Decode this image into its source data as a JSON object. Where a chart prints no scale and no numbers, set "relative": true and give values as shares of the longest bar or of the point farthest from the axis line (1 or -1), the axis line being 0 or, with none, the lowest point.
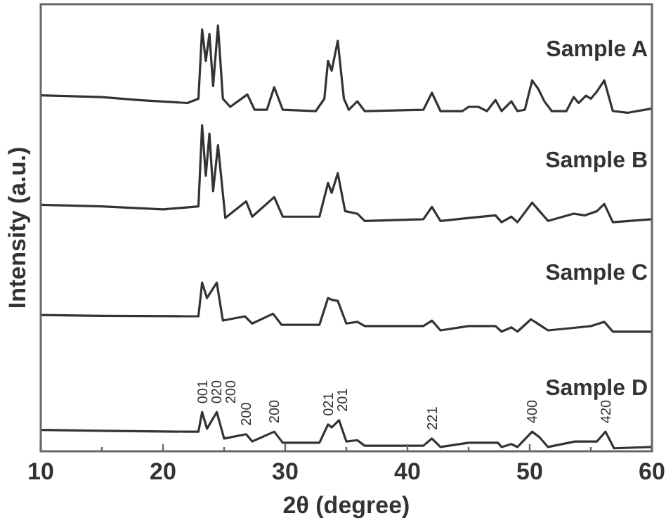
{
  "chart_data": {
    "type": "line",
    "relative": true,
    "xlabel": "2θ (degree)",
    "ylabel": "Intensity (a.u.)",
    "xlim": [
      10,
      60
    ],
    "xticks": [
      10,
      {
        "value": 15,
        "label": null
      },
      20,
      {
        "value": 25,
        "label": null
      },
      30,
      {
        "value": 35,
        "label": null
      },
      40,
      {
        "value": 45,
        "label": null
      },
      50,
      {
        "value": 55,
        "label": null
      },
      60
    ],
    "grid": false,
    "marker": "none",
    "line_style": "solid",
    "series": [
      {
        "name": "Sample A",
        "color": "#333333",
        "x": [
          10,
          15,
          18,
          22,
          22.9,
          23.2,
          23.5,
          23.8,
          24.1,
          24.5,
          24.9,
          25.5,
          26.9,
          27.5,
          28.5,
          29.1,
          29.8,
          32.5,
          33.2,
          33.5,
          33.8,
          34.3,
          34.8,
          35.2,
          35.9,
          36.5,
          41.3,
          42,
          42.7,
          44.5,
          45,
          45.8,
          46.5,
          47.2,
          47.7,
          48.5,
          49,
          49.6,
          50.2,
          50.7,
          51.2,
          51.8,
          53,
          53.6,
          54,
          54.6,
          55,
          55.5,
          56.1,
          56.8,
          58,
          60
        ],
        "values": [
          0.836,
          0.832,
          0.825,
          0.818,
          0.828,
          0.991,
          0.917,
          0.98,
          0.858,
          1.0,
          0.828,
          0.809,
          0.838,
          0.802,
          0.802,
          0.855,
          0.802,
          0.799,
          0.828,
          0.917,
          0.894,
          0.964,
          0.828,
          0.802,
          0.822,
          0.799,
          0.802,
          0.842,
          0.799,
          0.799,
          0.809,
          0.809,
          0.799,
          0.825,
          0.799,
          0.822,
          0.799,
          0.802,
          0.871,
          0.851,
          0.822,
          0.799,
          0.799,
          0.832,
          0.818,
          0.835,
          0.828,
          0.845,
          0.871,
          0.799,
          0.795,
          0.805
        ]
      },
      {
        "name": "Sample B",
        "color": "#333333",
        "x": [
          10,
          15,
          20,
          22.9,
          23.2,
          23.5,
          23.8,
          24.1,
          24.5,
          25.1,
          26.8,
          27.3,
          29.1,
          29.8,
          32.8,
          33.5,
          33.8,
          34.3,
          34.9,
          35.9,
          36.5,
          41.3,
          42,
          42.7,
          45,
          47.2,
          47.7,
          48.5,
          49,
          50.2,
          50.8,
          51.5,
          53.6,
          54.5,
          55.5,
          56.1,
          56.8,
          60
        ],
        "values": [
          0.579,
          0.575,
          0.568,
          0.575,
          0.766,
          0.647,
          0.746,
          0.611,
          0.719,
          0.548,
          0.587,
          0.551,
          0.597,
          0.551,
          0.551,
          0.63,
          0.607,
          0.653,
          0.564,
          0.558,
          0.541,
          0.545,
          0.574,
          0.541,
          0.548,
          0.554,
          0.538,
          0.551,
          0.538,
          0.584,
          0.564,
          0.541,
          0.558,
          0.554,
          0.564,
          0.581,
          0.538,
          0.545
        ]
      },
      {
        "name": "Sample C",
        "color": "#333333",
        "x": [
          10,
          15,
          22,
          22.9,
          23.2,
          23.6,
          24.4,
          24.9,
          26.7,
          27.3,
          29,
          29.7,
          32.8,
          33.5,
          33.8,
          34.3,
          35,
          35.9,
          36.5,
          41.3,
          42,
          42.7,
          45,
          47.2,
          47.7,
          48.5,
          49,
          50.1,
          50.8,
          51.5,
          54,
          55,
          56.1,
          56.8,
          60
        ],
        "values": [
          0.32,
          0.318,
          0.317,
          0.317,
          0.396,
          0.36,
          0.396,
          0.307,
          0.317,
          0.3,
          0.323,
          0.297,
          0.297,
          0.36,
          0.356,
          0.353,
          0.3,
          0.304,
          0.294,
          0.294,
          0.307,
          0.284,
          0.294,
          0.294,
          0.281,
          0.291,
          0.281,
          0.31,
          0.297,
          0.284,
          0.291,
          0.294,
          0.304,
          0.281,
          0.281
        ]
      },
      {
        "name": "Sample D",
        "color": "#333333",
        "x": [
          10,
          15,
          22,
          22.9,
          23.2,
          23.6,
          24.4,
          25,
          26.8,
          27.3,
          29.1,
          29.8,
          32.8,
          33.5,
          33.8,
          34.4,
          35,
          35.9,
          36.5,
          41.3,
          42,
          42.7,
          45,
          47.4,
          47.7,
          48.5,
          49,
          50.2,
          50.8,
          51.5,
          53.7,
          54.5,
          55.5,
          56.2,
          56.9,
          60
        ],
        "values": [
          0.05,
          0.048,
          0.046,
          0.046,
          0.092,
          0.053,
          0.092,
          0.03,
          0.04,
          0.023,
          0.046,
          0.02,
          0.02,
          0.063,
          0.056,
          0.073,
          0.023,
          0.026,
          0.013,
          0.013,
          0.03,
          0.01,
          0.02,
          0.02,
          0.01,
          0.017,
          0.01,
          0.046,
          0.033,
          0.01,
          0.023,
          0.023,
          0.023,
          0.046,
          0.007,
          0.01
        ]
      }
    ],
    "annotations": [
      {
        "text": "001",
        "x": 23.2,
        "y": 0.092
      },
      {
        "text": "020",
        "x": 23.8,
        "y": 0.092
      },
      {
        "text": "200",
        "x": 24.5,
        "y": 0.092
      },
      {
        "text": "200",
        "x": 26.8,
        "y": 0.04
      },
      {
        "text": "200",
        "x": 29.1,
        "y": 0.046
      },
      {
        "text": "021",
        "x": 33.5,
        "y": 0.063
      },
      {
        "text": "201",
        "x": 34.4,
        "y": 0.073
      },
      {
        "text": "221",
        "x": 42,
        "y": 0.03
      },
      {
        "text": "400",
        "x": 50.2,
        "y": 0.046
      },
      {
        "text": "420",
        "x": 56.2,
        "y": 0.046
      }
    ]
  }
}
